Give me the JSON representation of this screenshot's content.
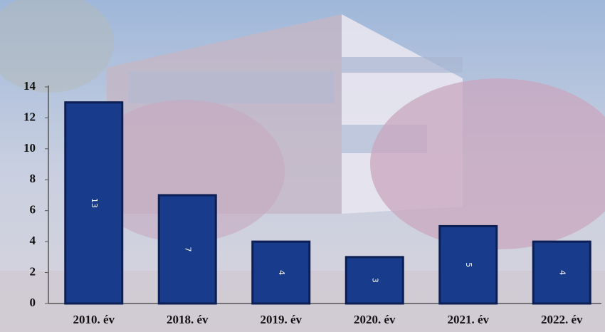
{
  "chart_data": {
    "type": "bar",
    "categories": [
      "2010. év",
      "2018. év",
      "2019. év",
      "2020. év",
      "2021. év",
      "2022. év"
    ],
    "values": [
      13,
      7,
      4,
      3,
      5,
      4
    ],
    "color": "#183b8c",
    "ylim": [
      0,
      14
    ],
    "yticks": [
      0,
      2,
      4,
      6,
      8,
      10,
      12,
      14
    ]
  }
}
